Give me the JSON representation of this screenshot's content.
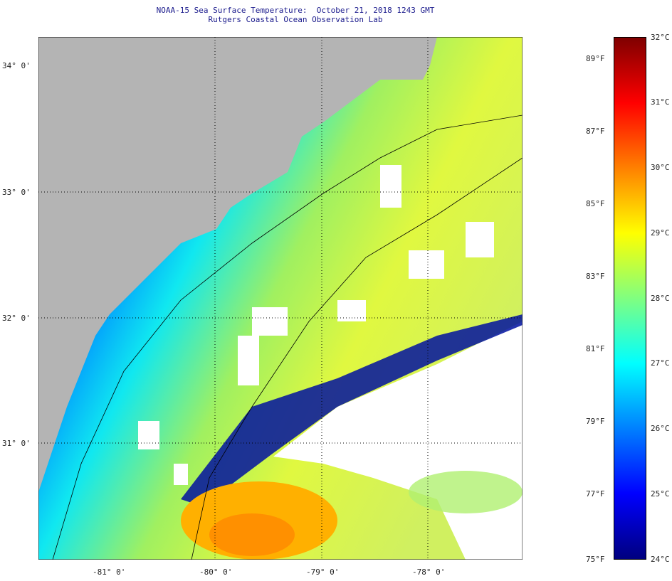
{
  "header": {
    "title": "NOAA-15 Sea Surface Temperature:  October 21, 2018 1243 GMT",
    "subtitle": "Rutgers Coastal Ocean Observation Lab"
  },
  "map": {
    "lat_labels": [
      {
        "value": 34,
        "label": "34° 0'"
      },
      {
        "value": 33,
        "label": "33° 0'"
      },
      {
        "value": 32,
        "label": "32° 0'"
      },
      {
        "value": 31,
        "label": "31° 0'"
      }
    ],
    "lon_labels": [
      {
        "value": -81,
        "label": "-81° 0'"
      },
      {
        "value": -80,
        "label": "-80° 0'"
      },
      {
        "value": -79,
        "label": "-79° 0'"
      },
      {
        "value": -78,
        "label": "-78° 0'"
      }
    ],
    "colors": {
      "land": "#b4b4b4",
      "cloud": "#ffffff",
      "contour": "#000000"
    }
  },
  "colorbar": {
    "min_c": 24,
    "max_c": 32,
    "celsius": [
      "32°C",
      "31°C",
      "30°C",
      "29°C",
      "28°C",
      "27°C",
      "26°C",
      "25°C",
      "24°C"
    ],
    "fahrenheit": [
      "89°F",
      "87°F",
      "85°F",
      "83°F",
      "81°F",
      "79°F",
      "77°F",
      "75°F"
    ],
    "colors": [
      "#00007f",
      "#0000ff",
      "#0080ff",
      "#00ffff",
      "#80ff80",
      "#ffff00",
      "#ff8000",
      "#ff0000",
      "#7f0000"
    ]
  }
}
